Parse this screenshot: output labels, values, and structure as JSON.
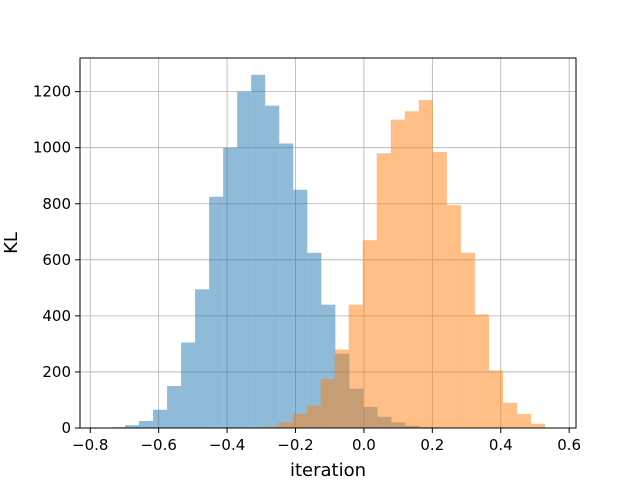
{
  "chart_data": {
    "type": "bar",
    "title": "",
    "xlabel": "iteration",
    "ylabel": "KL",
    "xlim": [
      -0.83,
      0.62
    ],
    "ylim": [
      0,
      1320
    ],
    "xticks": [
      -0.8,
      -0.6,
      -0.4,
      -0.2,
      0.0,
      0.2,
      0.4,
      0.6
    ],
    "xtick_labels": [
      "−0.8",
      "−0.6",
      "−0.4",
      "−0.2",
      "0.0",
      "0.2",
      "0.4",
      "0.6"
    ],
    "yticks": [
      0,
      200,
      400,
      600,
      800,
      1000,
      1200
    ],
    "ytick_labels": [
      "0",
      "200",
      "400",
      "600",
      "800",
      "1000",
      "1200"
    ],
    "grid": true,
    "legend": "none",
    "series": [
      {
        "color": "#1f77b4",
        "alpha": 0.5,
        "bin_edges": [
          -0.78,
          -0.7385,
          -0.6985,
          -0.6575,
          -0.6165,
          -0.5755,
          -0.5345,
          -0.4935,
          -0.4525,
          -0.4115,
          -0.3705,
          -0.3295,
          -0.2885,
          -0.2475,
          -0.2065,
          -0.1655,
          -0.1245,
          -0.0835,
          -0.0425,
          -0.0015,
          0.0395,
          0.0805,
          0.1215,
          0.1625,
          0.2035,
          0.2445
        ],
        "counts": [
          1,
          3,
          10,
          25,
          65,
          150,
          305,
          495,
          825,
          1000,
          1200,
          1260,
          1150,
          1015,
          850,
          625,
          440,
          265,
          140,
          75,
          40,
          20,
          8,
          3,
          1
        ]
      },
      {
        "color": "#ff7f0e",
        "alpha": 0.5,
        "bin_edges": [
          -0.2905,
          -0.2495,
          -0.2085,
          -0.1675,
          -0.1265,
          -0.0855,
          -0.0445,
          -0.0035,
          0.0375,
          0.0785,
          0.1195,
          0.1605,
          0.2015,
          0.2425,
          0.2835,
          0.3245,
          0.3655,
          0.4065,
          0.4475,
          0.4885,
          0.5295
        ],
        "counts": [
          5,
          20,
          50,
          80,
          175,
          280,
          440,
          670,
          980,
          1100,
          1130,
          1170,
          985,
          795,
          625,
          405,
          205,
          90,
          50,
          15
        ]
      }
    ]
  }
}
